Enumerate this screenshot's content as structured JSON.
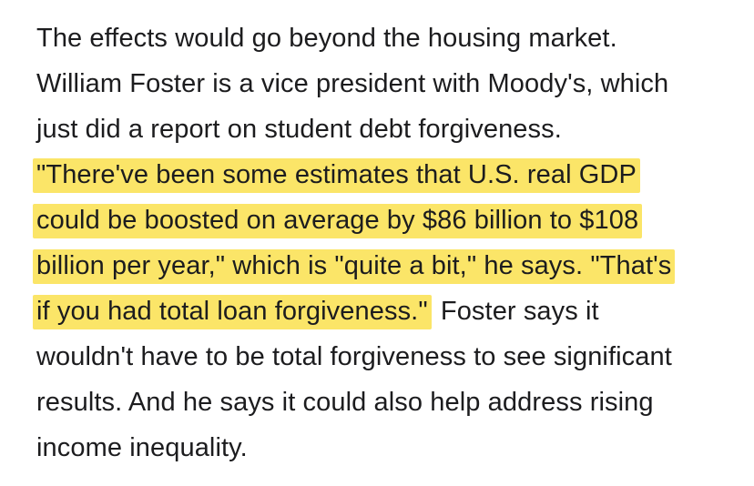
{
  "article": {
    "lines": [
      "The effects would go beyond the housing market.",
      "William Foster is a vice president with Moody's, which",
      "just did a report on student debt forgiveness.",
      "\"There've been some estimates that U.S. real GDP",
      "could be boosted on average by $86 billion to $108",
      "billion per year,\" which is \"quite a bit,\" he says. \"That's",
      "if you had total loan forgiveness.\"",
      " Foster says it",
      "wouldn't have to be total forgiveness to see significant",
      "results. And he says it could also help address rising",
      "income inequality."
    ]
  },
  "highlight_color": "#fbe568",
  "text_color": "#1c1c1e"
}
